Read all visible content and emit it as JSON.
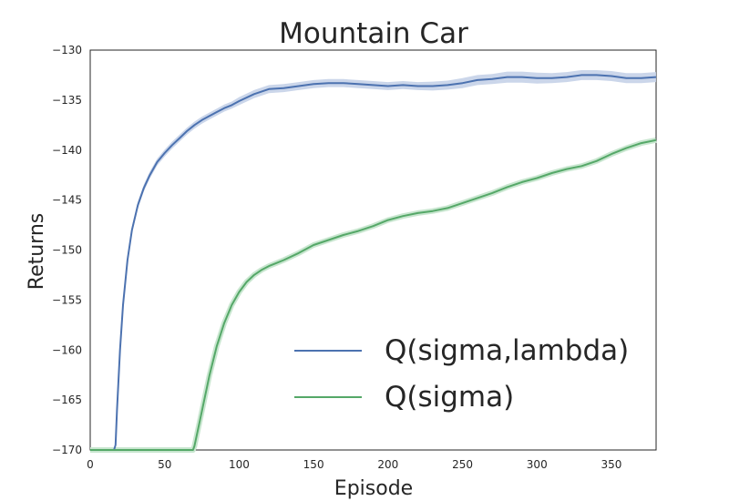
{
  "chart_data": {
    "type": "line",
    "title": "Mountain Car",
    "xlabel": "Episode",
    "ylabel": "Returns",
    "xlim": [
      0,
      380
    ],
    "ylim": [
      -170,
      -130
    ],
    "xticks": [
      0,
      50,
      100,
      150,
      200,
      250,
      300,
      350
    ],
    "yticks": [
      -130,
      -135,
      -140,
      -145,
      -150,
      -155,
      -160,
      -165,
      -170
    ],
    "xtick_labels": [
      "0",
      "50",
      "100",
      "150",
      "200",
      "250",
      "300",
      "350"
    ],
    "ytick_labels": [
      "−130",
      "−135",
      "−140",
      "−145",
      "−150",
      "−155",
      "−160",
      "−165",
      "−170"
    ],
    "grid": false,
    "legend_position": "lower-right",
    "series": [
      {
        "name": "Q(sigma,lambda)",
        "color": "#4c72b0",
        "band_color": "#c5d1e8",
        "x": [
          0,
          16,
          17,
          18,
          20,
          22,
          25,
          28,
          32,
          36,
          40,
          45,
          50,
          55,
          60,
          65,
          70,
          75,
          80,
          85,
          90,
          95,
          100,
          110,
          120,
          130,
          140,
          150,
          160,
          170,
          180,
          190,
          200,
          210,
          220,
          230,
          240,
          250,
          260,
          270,
          280,
          290,
          300,
          310,
          320,
          330,
          340,
          350,
          360,
          370,
          380
        ],
        "y": [
          -170,
          -170,
          -169.5,
          -166,
          -160,
          -155.5,
          -151,
          -148,
          -145.5,
          -143.8,
          -142.5,
          -141.2,
          -140.3,
          -139.5,
          -138.8,
          -138.1,
          -137.5,
          -137,
          -136.6,
          -136.2,
          -135.8,
          -135.5,
          -135.1,
          -134.4,
          -133.9,
          -133.8,
          -133.6,
          -133.4,
          -133.3,
          -133.3,
          -133.4,
          -133.5,
          -133.6,
          -133.5,
          -133.6,
          -133.6,
          -133.5,
          -133.3,
          -133,
          -132.9,
          -132.7,
          -132.7,
          -132.8,
          -132.8,
          -132.7,
          -132.5,
          -132.5,
          -132.6,
          -132.8,
          -132.8,
          -132.7
        ],
        "band": [
          0,
          0,
          0.1,
          0.2,
          0.3,
          0.35,
          0.35,
          0.35,
          0.35,
          0.35,
          0.35,
          0.35,
          0.35,
          0.35,
          0.35,
          0.35,
          0.35,
          0.35,
          0.35,
          0.35,
          0.35,
          0.35,
          0.4,
          0.4,
          0.4,
          0.4,
          0.4,
          0.4,
          0.4,
          0.4,
          0.4,
          0.4,
          0.4,
          0.4,
          0.4,
          0.45,
          0.45,
          0.5,
          0.5,
          0.5,
          0.55,
          0.55,
          0.55,
          0.5,
          0.5,
          0.5,
          0.5,
          0.5,
          0.5,
          0.5,
          0.5
        ]
      },
      {
        "name": "Q(sigma)",
        "color": "#55a868",
        "band_color": "#c8e6cf",
        "x": [
          0,
          69,
          70,
          72,
          75,
          80,
          85,
          90,
          95,
          100,
          105,
          110,
          115,
          120,
          125,
          130,
          140,
          150,
          160,
          170,
          180,
          190,
          200,
          210,
          220,
          230,
          240,
          250,
          260,
          270,
          280,
          290,
          300,
          310,
          320,
          330,
          340,
          350,
          360,
          370,
          380
        ],
        "y": [
          -170,
          -170,
          -169.6,
          -168.2,
          -166.1,
          -162.6,
          -159.6,
          -157.3,
          -155.5,
          -154.2,
          -153.2,
          -152.5,
          -152,
          -151.6,
          -151.3,
          -151,
          -150.3,
          -149.5,
          -149,
          -148.5,
          -148.1,
          -147.6,
          -147,
          -146.6,
          -146.3,
          -146.1,
          -145.8,
          -145.3,
          -144.8,
          -144.3,
          -143.7,
          -143.2,
          -142.8,
          -142.3,
          -141.9,
          -141.6,
          -141.1,
          -140.4,
          -139.8,
          -139.3,
          -139
        ]
      }
    ]
  }
}
